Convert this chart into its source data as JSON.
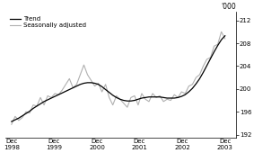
{
  "ylabel_top": "'000",
  "legend_entries": [
    "Trend",
    "Seasonally adjusted"
  ],
  "trend_color": "#000000",
  "seasonal_color": "#b0b0b0",
  "ylim": [
    191.5,
    213.5
  ],
  "yticks": [
    192,
    196,
    200,
    204,
    208,
    212
  ],
  "xtick_positions": [
    0,
    1,
    2,
    3,
    4,
    5
  ],
  "xtick_labels": [
    "Dec\n1998",
    "Dec\n1999",
    "Dec\n2000",
    "Dec\n2001",
    "Dec\n2002",
    "Dec\n2003"
  ],
  "background_color": "#ffffff",
  "trend_lw": 0.9,
  "seasonal_lw": 0.8,
  "trend_data": [
    194.3,
    194.6,
    194.9,
    195.3,
    195.7,
    196.1,
    196.6,
    197.0,
    197.4,
    197.8,
    198.1,
    198.4,
    198.7,
    199.0,
    199.3,
    199.6,
    199.9,
    200.2,
    200.5,
    200.8,
    201.0,
    201.1,
    201.1,
    201.0,
    200.8,
    200.4,
    199.9,
    199.4,
    198.9,
    198.5,
    198.2,
    198.0,
    197.9,
    197.9,
    198.0,
    198.2,
    198.4,
    198.5,
    198.6,
    198.6,
    198.6,
    198.6,
    198.5,
    198.4,
    198.4,
    198.4,
    198.5,
    198.7,
    199.0,
    199.5,
    200.1,
    200.9,
    201.8,
    202.9,
    204.1,
    205.3,
    206.5,
    207.6,
    208.6,
    209.3
  ],
  "seasonal_data": [
    193.8,
    195.2,
    194.5,
    195.0,
    196.0,
    195.8,
    197.2,
    197.0,
    198.5,
    197.2,
    198.8,
    198.5,
    199.2,
    199.0,
    199.8,
    200.8,
    201.8,
    200.2,
    200.8,
    202.5,
    204.2,
    202.5,
    201.5,
    200.5,
    201.0,
    199.5,
    200.8,
    198.5,
    197.2,
    198.8,
    198.2,
    197.5,
    196.8,
    198.5,
    198.8,
    197.2,
    199.2,
    198.2,
    197.8,
    199.2,
    198.5,
    198.8,
    197.8,
    198.2,
    198.0,
    199.0,
    198.5,
    199.5,
    199.2,
    200.5,
    200.8,
    202.0,
    202.5,
    204.0,
    205.2,
    205.5,
    207.5,
    207.8,
    210.0,
    208.8
  ]
}
